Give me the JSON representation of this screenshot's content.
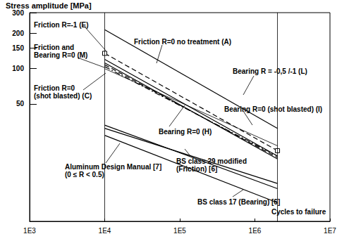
{
  "chart_data": {
    "type": "line",
    "y_label": "Stress amplitude [MPa]",
    "x_label": "Cycles to failure",
    "log": true,
    "grid": false,
    "xlim": [
      1000,
      10000000
    ],
    "xticks": [
      {
        "value": 1000,
        "label": "1E3"
      },
      {
        "value": 10000,
        "label": "1E4"
      },
      {
        "value": 100000,
        "label": "1E5"
      },
      {
        "value": 1000000,
        "label": "1E6"
      },
      {
        "value": 10000000,
        "label": "1E7"
      }
    ],
    "ylim": [
      5,
      300
    ],
    "yticks": [
      50,
      100,
      150,
      200,
      300
    ],
    "limits": [
      10000,
      2000000
    ],
    "x": [
      10000,
      2000000
    ],
    "series": [
      {
        "name": "Bearing R = -0,5 /-1 (L)",
        "color": "#000000",
        "line_style": "solid",
        "marker": "none",
        "values": [
          215,
          31
        ]
      },
      {
        "name": "Friction R=-1 (E)",
        "color": "#000000",
        "line_style": "dashed",
        "marker": "square",
        "values": [
          135,
          20
        ]
      },
      {
        "name": "Friction R=0 no treatment (A)",
        "color": "#000000",
        "line_style": "solid",
        "marker": "none",
        "values": [
          120,
          18
        ]
      },
      {
        "name": "Friction and\nBearing R=0 (M)",
        "color": "#000000",
        "line_style": "solid",
        "marker": "none",
        "values": [
          112,
          17
        ]
      },
      {
        "name": "Bearing R=0 (H)",
        "color": "#000000",
        "line_style": "dashed",
        "marker": "none",
        "values": [
          108,
          17.5
        ]
      },
      {
        "name": "Friction R=0\n(shot blasted) (C)",
        "color": "#000000",
        "line_style": "dashdot",
        "marker": "none",
        "values": [
          104,
          18
        ]
      },
      {
        "name": "Bearing R=0 (shot blasted) (I)",
        "color": "#000000",
        "line_style": "solid",
        "marker": "none",
        "values": [
          100,
          22
        ]
      },
      {
        "name": "Aluminum Design Manual [7]\n(0 ≤ R < 0.5)",
        "color": "#000000",
        "line_style": "solid",
        "marker": "none",
        "values": [
          33,
          9.5
        ]
      },
      {
        "name": "BS class 29 modified\n(Friction) [6]",
        "color": "#000000",
        "line_style": "solid",
        "marker": "none",
        "values": [
          31,
          10.5
        ]
      },
      {
        "name": "BS class 17 (Bearing) [6]",
        "color": "#000000",
        "line_style": "solid",
        "marker": "none",
        "values": [
          27,
          7.2
        ]
      }
    ]
  }
}
